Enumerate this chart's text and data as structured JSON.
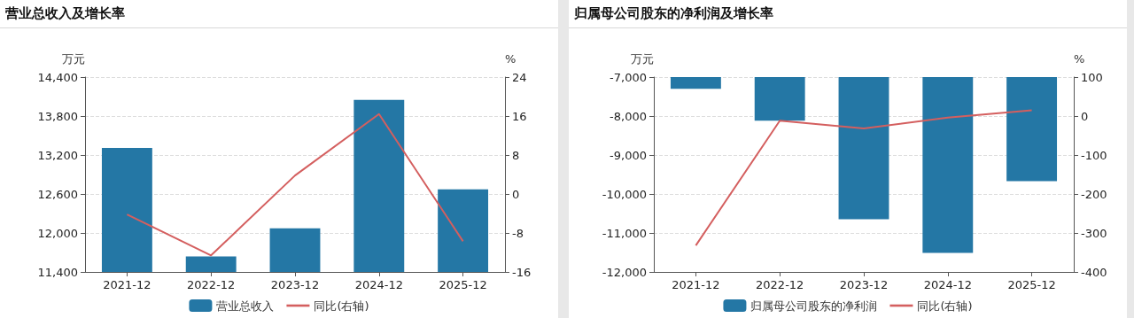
{
  "chart_data": [
    {
      "type": "bar",
      "title": "营业总收入及增长率",
      "ylabel": "万元",
      "y2label": "%",
      "categories": [
        "2021-12",
        "2022-12",
        "2023-12",
        "2024-12",
        "2025-12"
      ],
      "series": [
        {
          "name": "营业总收入",
          "color": "#2477a5",
          "values": [
            13310,
            11640,
            12070,
            14050,
            12670
          ]
        },
        {
          "name": "同比(右轴)",
          "type": "line",
          "axis": "y2",
          "color": "#d45f5f",
          "values": [
            -4.2,
            -12.6,
            3.8,
            16.4,
            -9.7
          ]
        }
      ],
      "ylim": [
        11400,
        14400
      ],
      "yticks": [
        {
          "value": 11400,
          "label": "11,400"
        },
        {
          "value": 12000,
          "label": "12,000"
        },
        {
          "value": 12600,
          "label": "12,600"
        },
        {
          "value": 13200,
          "label": "13,200"
        },
        {
          "value": 13800,
          "label": "13,800"
        },
        {
          "value": 14400,
          "label": "14,400"
        }
      ],
      "y2lim": [
        -16,
        24
      ],
      "y2ticks": [
        -16,
        -8,
        0,
        8,
        16,
        24
      ],
      "grid": "y",
      "legend": "bottom",
      "marker": "none"
    },
    {
      "type": "bar",
      "title": "归属母公司股东的净利润及增长率",
      "ylabel": "万元",
      "y2label": "%",
      "categories": [
        "2021-12",
        "2022-12",
        "2023-12",
        "2024-12",
        "2025-12"
      ],
      "series": [
        {
          "name": "归属母公司股东的净利润",
          "color": "#2477a5",
          "values": [
            -7300,
            -8120,
            -10650,
            -11510,
            -9670
          ]
        },
        {
          "name": "同比(右轴)",
          "type": "line",
          "axis": "y2",
          "color": "#d45f5f",
          "values": [
            -332,
            -12,
            -32,
            -4,
            15
          ]
        }
      ],
      "ylim": [
        -12000,
        -7000
      ],
      "yticks": [
        {
          "value": -12000,
          "label": "-12,000"
        },
        {
          "value": -11000,
          "label": "-11,000"
        },
        {
          "value": -10000,
          "label": "-10,000"
        },
        {
          "value": -9000,
          "label": "-9,000"
        },
        {
          "value": -8000,
          "label": "-8,000"
        },
        {
          "value": -7000,
          "label": "-7,000"
        }
      ],
      "y2lim": [
        -400,
        100
      ],
      "y2ticks": [
        -400,
        -300,
        -200,
        -100,
        0,
        100
      ],
      "grid": "y",
      "legend": "bottom",
      "marker": "none"
    }
  ]
}
